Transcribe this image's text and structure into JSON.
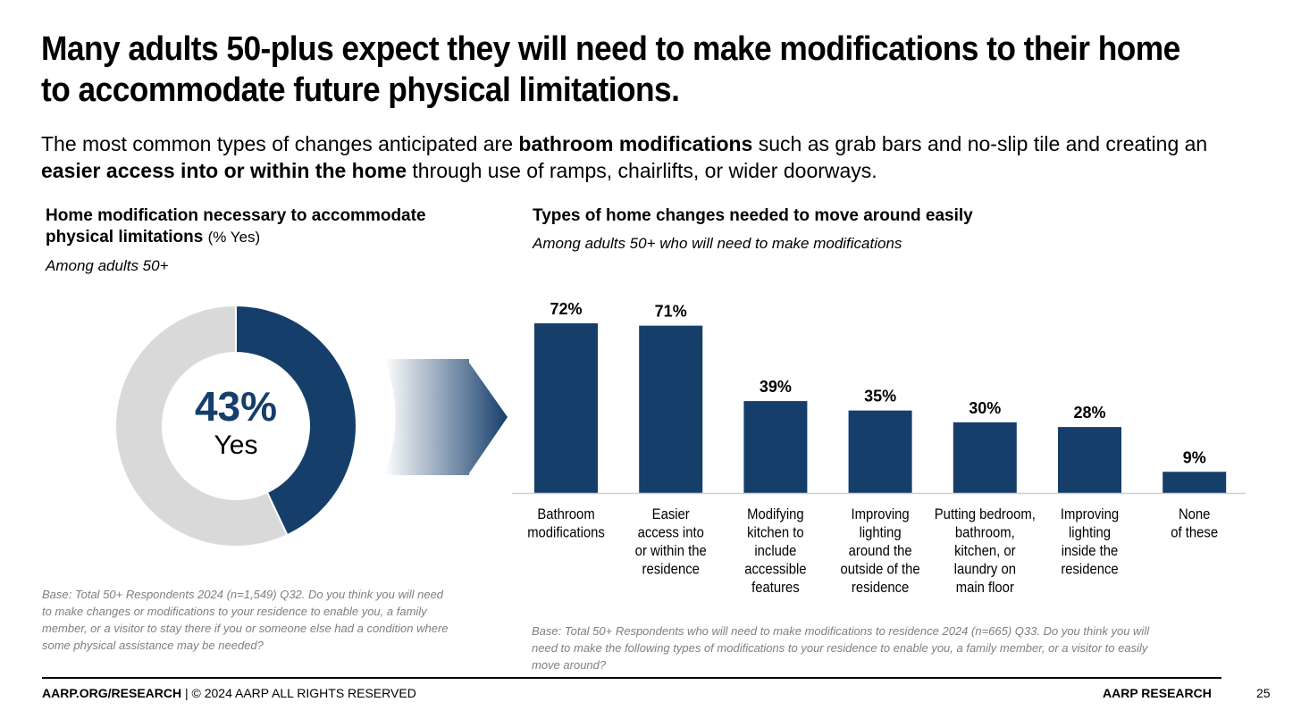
{
  "title": "Many adults 50-plus expect they will need to make modifications to their home to accommodate future physical limitations.",
  "subtitle": {
    "part1": "The most common types of changes anticipated are ",
    "bold1": "bathroom modifications",
    "part2": " such as grab bars and no-slip tile and creating an ",
    "bold2": "easier access into or within the home",
    "part3": " through use of ramps, chairlifts, or wider doorways."
  },
  "colors": {
    "primary": "#163E6B",
    "donut_rest": "#D9D9D9",
    "text": "#000000",
    "source_text": "#7F7F7F"
  },
  "left_chart": {
    "title_bold": "Home modification necessary to accommodate physical limitations",
    "title_suffix": "(% Yes)",
    "base_label": "Among adults 50+",
    "source": "Base: Total 50+ Respondents 2024 (n=1,549) Q32. Do you think you will need to make changes or modifications to your residence to enable you, a family member, or a visitor to stay there if you or someone else had a condition where some physical assistance may be needed?"
  },
  "right_chart": {
    "title": "Types of home changes needed to move around easily",
    "base_label": "Among adults 50+ who will need to make modifications",
    "source": "Base: Total 50+ Respondents who will need to make modifications to residence 2024 (n=665) Q33. Do you think you will need to make the following types of modifications to your residence to enable you, a family member, or a visitor to easily move around?"
  },
  "chart_data": [
    {
      "type": "pie",
      "variant": "donut",
      "categories": [
        "Yes",
        ""
      ],
      "values": [
        43,
        57
      ],
      "center_value": "43%",
      "center_label": "Yes",
      "colors": [
        "#163E6B",
        "#D9D9D9"
      ]
    },
    {
      "type": "bar",
      "categories": [
        "Bathroom modifications",
        "Easier access into or within the residence",
        "Modifying kitchen to include accessible features",
        "Improving lighting around the outside of the residence",
        "Putting bedroom, bathroom, kitchen, or laundry on main floor",
        "Improving lighting inside the residence",
        "None of these"
      ],
      "category_lines": [
        [
          "Bathroom",
          "modifications"
        ],
        [
          "Easier",
          "access into",
          "or within the",
          "residence"
        ],
        [
          "Modifying",
          "kitchen to",
          "include",
          "accessible",
          "features"
        ],
        [
          "Improving",
          "lighting",
          "around the",
          "outside of the",
          "residence"
        ],
        [
          "Putting bedroom,",
          "bathroom,",
          "kitchen, or",
          "laundry on",
          "main floor"
        ],
        [
          "Improving",
          "lighting",
          "inside the",
          "residence"
        ],
        [
          "None",
          "of these"
        ]
      ],
      "values": [
        72,
        71,
        39,
        35,
        30,
        28,
        9
      ],
      "data_labels": [
        "72%",
        "71%",
        "39%",
        "35%",
        "30%",
        "28%",
        "9%"
      ],
      "ylim": [
        0,
        72
      ],
      "color": "#163E6B",
      "grid": false,
      "legend": "none"
    }
  ],
  "footer": {
    "left_bold": "AARP.ORG/RESEARCH",
    "left_rest": " | © 2024 AARP ALL RIGHTS RESERVED",
    "brand": "AARP RESEARCH",
    "page_number": "25"
  }
}
